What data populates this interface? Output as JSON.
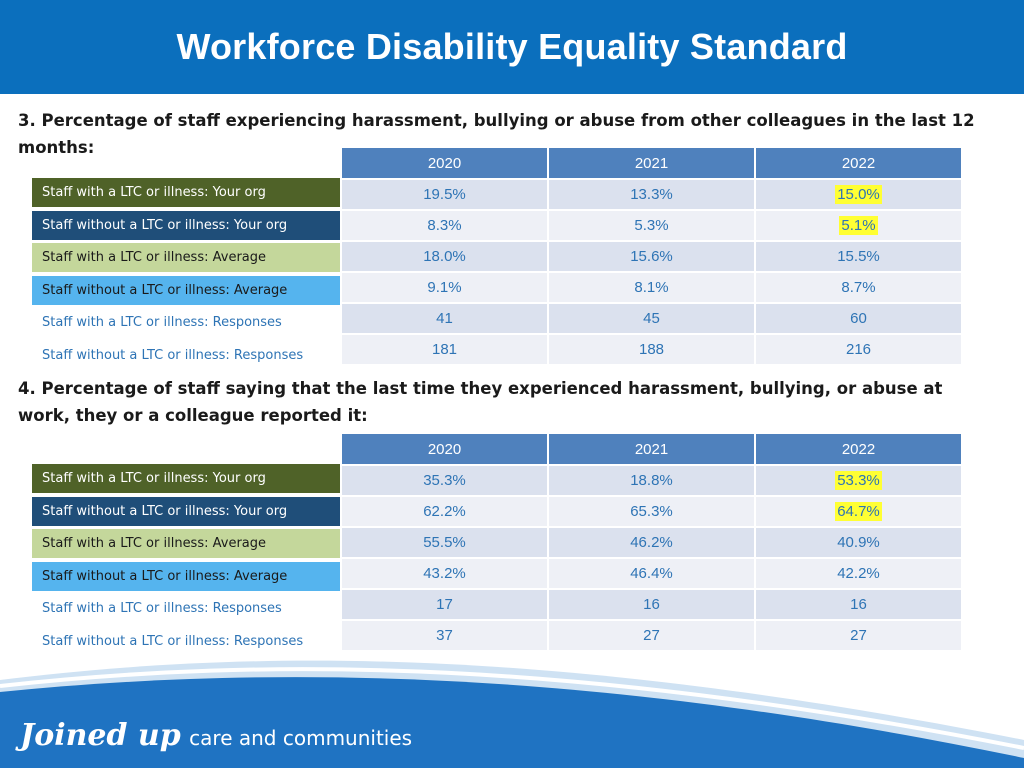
{
  "header": {
    "title": "Workforce Disability Equality Standard"
  },
  "sections": [
    {
      "title": "3. Percentage of staff experiencing harassment, bullying or abuse from other colleagues in the last 12 months:",
      "years": [
        "2020",
        "2021",
        "2022"
      ],
      "rows": [
        {
          "label": "Staff with a LTC or illness: Your org",
          "values": [
            "19.5%",
            "13.3%",
            "15.0%"
          ]
        },
        {
          "label": "Staff without a LTC or illness: Your org",
          "values": [
            "8.3%",
            "5.3%",
            "5.1%"
          ]
        },
        {
          "label": "Staff with a LTC or illness: Average",
          "values": [
            "18.0%",
            "15.6%",
            "15.5%"
          ]
        },
        {
          "label": "Staff without a LTC or illness: Average",
          "values": [
            "9.1%",
            "8.1%",
            "8.7%"
          ]
        },
        {
          "label": "Staff with a LTC or illness: Responses",
          "values": [
            "41",
            "45",
            "60"
          ]
        },
        {
          "label": "Staff without a LTC or illness: Responses",
          "values": [
            "181",
            "188",
            "216"
          ]
        }
      ]
    },
    {
      "title": "4. Percentage of staff saying that the last time they experienced harassment, bullying, or abuse at work, they or a colleague reported it:",
      "years": [
        "2020",
        "2021",
        "2022"
      ],
      "rows": [
        {
          "label": "Staff with a LTC or illness: Your org",
          "values": [
            "35.3%",
            "18.8%",
            "53.3%"
          ]
        },
        {
          "label": "Staff without a LTC or illness: Your org",
          "values": [
            "62.2%",
            "65.3%",
            "64.7%"
          ]
        },
        {
          "label": "Staff with a LTC or illness: Average",
          "values": [
            "55.5%",
            "46.2%",
            "40.9%"
          ]
        },
        {
          "label": "Staff without a LTC or illness: Average",
          "values": [
            "43.2%",
            "46.4%",
            "42.2%"
          ]
        },
        {
          "label": "Staff with a LTC or illness: Responses",
          "values": [
            "17",
            "16",
            "16"
          ]
        },
        {
          "label": "Staff without a LTC or illness: Responses",
          "values": [
            "37",
            "27",
            "27"
          ]
        }
      ]
    }
  ],
  "footer": {
    "logo_script": "Joined up",
    "logo_text": "care and communities"
  },
  "colors": {
    "header_bg": "#0b6fbd",
    "highlight": "#ffff33",
    "value_text": "#2e74b5"
  }
}
